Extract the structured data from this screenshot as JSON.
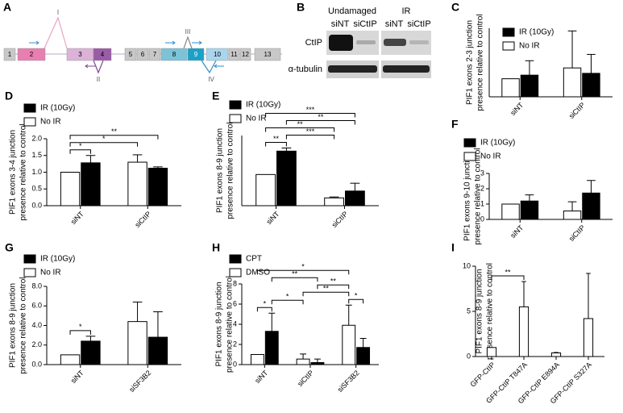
{
  "gene_diagram": {
    "label": "A",
    "exons": [
      "1",
      "2",
      "3",
      "4",
      "5",
      "6",
      "7",
      "8",
      "9",
      "10",
      "11",
      "12",
      "13"
    ],
    "junctions": [
      "I",
      "II",
      "III",
      "IV"
    ]
  },
  "western_blot": {
    "label": "B",
    "conditions": [
      "Undamaged",
      "IR"
    ],
    "lanes": [
      "siNT",
      "siCtIP",
      "siNT",
      "siCtIP"
    ],
    "proteins": [
      "CtIP",
      "α-tubulin"
    ]
  },
  "chart_data": [
    {
      "label": "C",
      "type": "bar",
      "ylabel": [
        "PIF1 exons 2-3 junction",
        "presence relative to control"
      ],
      "categories": [
        "siNT",
        "siCtIP"
      ],
      "series": [
        {
          "name": "IR (10Gy)",
          "color": "#000000",
          "values": [
            1.2,
            1.3
          ],
          "errors": [
            0.8,
            1.05
          ]
        },
        {
          "name": "No IR",
          "color": "#ffffff",
          "values": [
            1.0,
            1.6
          ],
          "errors": [
            null,
            2.05
          ]
        }
      ],
      "ylim": [
        0,
        3.8
      ]
    },
    {
      "label": "D",
      "type": "bar",
      "ylabel": [
        "PIF1 exons 3-4 junction",
        "presence relative to control"
      ],
      "categories": [
        "siNT",
        "siCtIP"
      ],
      "series": [
        {
          "name": "IR (10Gy)",
          "color": "#000000",
          "values": [
            1.28,
            1.12
          ],
          "errors": [
            0.22,
            0.04
          ]
        },
        {
          "name": "No IR",
          "color": "#ffffff",
          "values": [
            1.0,
            1.3
          ],
          "errors": [
            null,
            0.22
          ]
        }
      ],
      "ylim": [
        0,
        2.0
      ],
      "yticks": [
        {
          "value": 0,
          "label": "0.0"
        },
        0.5,
        {
          "value": 1,
          "label": "1.0"
        },
        1.5,
        {
          "value": 2,
          "label": "2.0"
        }
      ],
      "comparisons": [
        {
          "label": "*",
          "pair": [
            [
              0,
              1
            ],
            [
              0,
              0
            ]
          ]
        },
        {
          "label": "*",
          "pair": [
            [
              0,
              1
            ],
            [
              1,
              1
            ]
          ]
        },
        {
          "label": "**",
          "pair": [
            [
              0,
              1
            ],
            [
              1,
              0
            ]
          ]
        }
      ]
    },
    {
      "label": "E",
      "type": "bar",
      "ylabel": [
        "PIF1 exons 8-9 junction",
        "presence relative to control"
      ],
      "categories": [
        "siNT",
        "siCtIP"
      ],
      "series": [
        {
          "name": "IR (10Gy)",
          "color": "#000000",
          "values": [
            1.75,
            0.47
          ],
          "errors": [
            0.1,
            0.25
          ]
        },
        {
          "name": "No IR",
          "color": "#ffffff",
          "values": [
            1.0,
            0.25
          ],
          "errors": [
            null,
            0.03
          ]
        }
      ],
      "ylim": [
        0,
        2.25
      ],
      "comparisons": [
        {
          "label": "**",
          "pair": [
            [
              0,
              1
            ],
            [
              0,
              0
            ]
          ]
        },
        {
          "label": "***",
          "pair": [
            [
              0,
              0
            ],
            [
              1,
              1
            ]
          ]
        },
        {
          "label": "**",
          "pair": [
            [
              0,
              1
            ],
            [
              1,
              1
            ]
          ]
        },
        {
          "label": "**",
          "pair": [
            [
              0,
              0
            ],
            [
              1,
              0
            ]
          ]
        },
        {
          "label": "***",
          "pair": [
            [
              0,
              1
            ],
            [
              1,
              0
            ]
          ]
        }
      ]
    },
    {
      "label": "F",
      "type": "bar",
      "ylabel": [
        "PIF1 exons 9-10 junction",
        "presence relative to control"
      ],
      "categories": [
        "siNT",
        "siCtIP"
      ],
      "series": [
        {
          "name": "IR (10Gy)",
          "color": "#000000",
          "values": [
            1.2,
            1.72
          ],
          "errors": [
            0.4,
            0.82
          ]
        },
        {
          "name": "No IR",
          "color": "#ffffff",
          "values": [
            1.0,
            0.55
          ],
          "errors": [
            null,
            0.6
          ]
        }
      ],
      "ylim": [
        0,
        3
      ],
      "yticks": [
        0,
        1,
        2,
        3
      ]
    },
    {
      "label": "G",
      "type": "bar",
      "ylabel": [
        "PIF1 exons 8-9 junction",
        "presence relative to control"
      ],
      "categories": [
        "siNT",
        "siSF3B2"
      ],
      "series": [
        {
          "name": "IR (10Gy)",
          "color": "#000000",
          "values": [
            2.4,
            2.8
          ],
          "errors": [
            0.5,
            2.6
          ]
        },
        {
          "name": "No IR",
          "color": "#ffffff",
          "values": [
            1.0,
            4.4
          ],
          "errors": [
            null,
            2.0
          ]
        }
      ],
      "ylim": [
        0,
        8
      ],
      "yticks": [
        {
          "value": 0,
          "label": "0.0"
        },
        {
          "value": 2,
          "label": "2.0"
        },
        {
          "value": 4,
          "label": "4.0"
        },
        {
          "value": 6,
          "label": "6.0"
        },
        {
          "value": 8,
          "label": "8.0"
        }
      ],
      "comparisons": [
        {
          "label": "*",
          "pair": [
            [
              0,
              1
            ],
            [
              0,
              0
            ]
          ]
        }
      ]
    },
    {
      "label": "H",
      "type": "bar",
      "ylabel": [
        "PIF1 exons 8-9 junction",
        "presence relative to control"
      ],
      "categories": [
        "siNT",
        "siCtIP",
        "siSF3B2"
      ],
      "series": [
        {
          "name": "CPT",
          "color": "#000000",
          "values": [
            3.3,
            0.2,
            1.7
          ],
          "errors": [
            1.8,
            0.35,
            0.9
          ]
        },
        {
          "name": "DMSO",
          "color": "#ffffff",
          "values": [
            1.0,
            0.55,
            3.9
          ],
          "errors": [
            null,
            0.5,
            2.0
          ]
        }
      ],
      "ylim": [
        0,
        8
      ],
      "yticks": [
        0,
        2,
        4,
        6,
        8
      ],
      "comparisons": [
        {
          "label": "*",
          "pair": [
            [
              0,
              1
            ],
            [
              0,
              0
            ]
          ]
        },
        {
          "label": "*",
          "pair": [
            [
              0,
              0
            ],
            [
              1,
              1
            ]
          ]
        },
        {
          "label": "*",
          "pair": [
            [
              2,
              1
            ],
            [
              2,
              0
            ]
          ]
        },
        {
          "label": "**",
          "pair": [
            [
              1,
              1
            ],
            [
              2,
              1
            ]
          ]
        },
        {
          "label": "**",
          "pair": [
            [
              1,
              0
            ],
            [
              2,
              1
            ]
          ]
        },
        {
          "label": "**",
          "pair": [
            [
              0,
              0
            ],
            [
              1,
              0
            ]
          ]
        },
        {
          "label": "*",
          "pair": [
            [
              0,
              1
            ],
            [
              2,
              1
            ]
          ]
        }
      ]
    },
    {
      "label": "I",
      "type": "bar",
      "ylabel": [
        "PIF1 exons 8-9 junction",
        "presence relative to control"
      ],
      "categories": [
        "GFP-CtIP",
        "GFP-CtIP T847A",
        "GFP-CtIP E894A",
        "GFP-CtIP S327A"
      ],
      "series": [
        {
          "color": "#ffffff",
          "values": [
            1.0,
            5.5,
            0.4,
            4.2
          ],
          "errors": [
            null,
            2.8,
            0.05,
            5.0
          ]
        }
      ],
      "ylim": [
        0,
        10
      ],
      "yticks": [
        0,
        5,
        10
      ],
      "comparisons": [
        {
          "label": "**",
          "pair": [
            [
              0,
              0
            ],
            [
              1,
              0
            ]
          ]
        }
      ]
    }
  ]
}
